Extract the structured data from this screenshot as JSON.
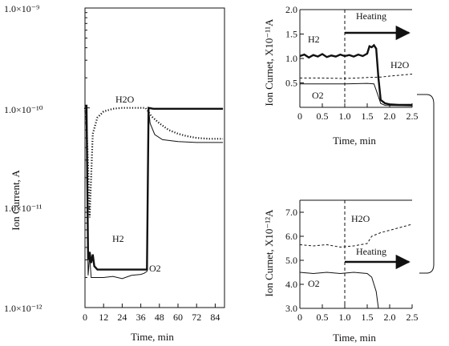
{
  "chart_data": [
    {
      "id": "main",
      "type": "line",
      "ylabel": "Ion Current, A",
      "xlabel": "Time, min",
      "y_scale": "log",
      "ylim": [
        1e-12,
        1e-09
      ],
      "xlim": [
        0,
        90
      ],
      "y_tick_labels": [
        "1.0×10⁻¹²",
        "1.0×10⁻¹¹",
        "1.0×10⁻¹⁰",
        "1.0×10⁻⁹"
      ],
      "y_tick_values": [
        1e-12,
        1e-11,
        1e-10,
        1e-09
      ],
      "x_ticks": [
        0,
        12,
        24,
        36,
        48,
        60,
        72,
        84
      ],
      "x_tick_labels": [
        "0",
        "12",
        "24",
        "36",
        "48",
        "60",
        "72",
        "84"
      ],
      "series": [
        {
          "name": "H2O",
          "style": "dotted",
          "color": "#111111",
          "points": [
            [
              0,
              1e-10
            ],
            [
              1,
              7e-11
            ],
            [
              2,
              2.6e-11
            ],
            [
              3,
              8e-12
            ],
            [
              5,
              5.5e-11
            ],
            [
              8,
              8e-11
            ],
            [
              12,
              9.2e-11
            ],
            [
              18,
              9.8e-11
            ],
            [
              24,
              1e-10
            ],
            [
              30,
              1e-10
            ],
            [
              36,
              1e-10
            ],
            [
              39,
              1e-10
            ],
            [
              40,
              9.6e-11
            ],
            [
              43,
              8.2e-11
            ],
            [
              48,
              7e-11
            ],
            [
              54,
              6e-11
            ],
            [
              60,
              5.5e-11
            ],
            [
              66,
              5.2e-11
            ],
            [
              72,
              5e-11
            ],
            [
              80,
              4.9e-11
            ],
            [
              89,
              4.9e-11
            ]
          ]
        },
        {
          "name": "H2",
          "style": "solid-thick",
          "color": "#111111",
          "points": [
            [
              0,
              1.05e-10
            ],
            [
              1,
              1.05e-10
            ],
            [
              2,
              3e-12
            ],
            [
              3,
              3.6e-12
            ],
            [
              4,
              2.8e-12
            ],
            [
              5,
              3.4e-12
            ],
            [
              6,
              2.6e-12
            ],
            [
              8,
              2.4e-12
            ],
            [
              12,
              2.4e-12
            ],
            [
              24,
              2.4e-12
            ],
            [
              36,
              2.4e-12
            ],
            [
              38,
              2.4e-12
            ],
            [
              40,
              2.4e-12
            ],
            [
              41,
              1e-10
            ],
            [
              44,
              9.8e-11
            ],
            [
              60,
              9.8e-11
            ],
            [
              72,
              9.8e-11
            ],
            [
              89,
              9.8e-11
            ]
          ]
        },
        {
          "name": "O2",
          "style": "solid-thin",
          "color": "#111111",
          "points": [
            [
              0,
              1e-10
            ],
            [
              1,
              1e-10
            ],
            [
              2,
              2.1e-12
            ],
            [
              3,
              3.3e-12
            ],
            [
              4,
              2e-12
            ],
            [
              6,
              2e-12
            ],
            [
              12,
              2e-12
            ],
            [
              18,
              2.05e-12
            ],
            [
              24,
              1.95e-12
            ],
            [
              30,
              2.1e-12
            ],
            [
              36,
              2.15e-12
            ],
            [
              38,
              2.2e-12
            ],
            [
              40,
              2.3e-12
            ],
            [
              41,
              1e-10
            ],
            [
              42,
              7e-11
            ],
            [
              45,
              5.4e-11
            ],
            [
              50,
              4.8e-11
            ],
            [
              60,
              4.6e-11
            ],
            [
              72,
              4.5e-11
            ],
            [
              89,
              4.5e-11
            ]
          ]
        }
      ],
      "annotations": [
        "H2O",
        "H2",
        "O2"
      ]
    },
    {
      "id": "inset-top",
      "type": "line",
      "ylabel": "Ion Curnet, X10⁻¹¹A",
      "xlabel": "Time, min",
      "xlim": [
        0,
        2.5
      ],
      "ylim": [
        0,
        2.0
      ],
      "x_ticks": [
        0,
        0.5,
        1.0,
        1.5,
        2.0,
        2.5
      ],
      "x_tick_labels": [
        "0",
        "0.5",
        "1.0",
        "1.5",
        "2.0",
        "2.5"
      ],
      "y_ticks": [
        0.5,
        1.0,
        1.5,
        2.0
      ],
      "y_tick_labels": [
        "0.5",
        "1.0",
        "1.5",
        "2.0"
      ],
      "heating_start": 1.0,
      "heating_label": "Heating",
      "series": [
        {
          "name": "H2",
          "style": "solid-thick",
          "color": "#111111",
          "points": [
            [
              0,
              1.05
            ],
            [
              0.1,
              1.08
            ],
            [
              0.2,
              1.02
            ],
            [
              0.3,
              1.07
            ],
            [
              0.4,
              1.04
            ],
            [
              0.5,
              1.09
            ],
            [
              0.6,
              1.03
            ],
            [
              0.7,
              1.06
            ],
            [
              0.8,
              1.04
            ],
            [
              0.9,
              1.08
            ],
            [
              1.0,
              1.05
            ],
            [
              1.1,
              1.07
            ],
            [
              1.2,
              1.04
            ],
            [
              1.3,
              1.08
            ],
            [
              1.4,
              1.05
            ],
            [
              1.5,
              1.1
            ],
            [
              1.55,
              1.25
            ],
            [
              1.6,
              1.23
            ],
            [
              1.65,
              1.27
            ],
            [
              1.7,
              1.2
            ],
            [
              1.75,
              0.6
            ],
            [
              1.8,
              0.15
            ],
            [
              1.9,
              0.08
            ],
            [
              2.0,
              0.06
            ],
            [
              2.2,
              0.05
            ],
            [
              2.5,
              0.05
            ]
          ]
        },
        {
          "name": "H2O",
          "style": "dashed",
          "color": "#111111",
          "points": [
            [
              0,
              0.6
            ],
            [
              0.5,
              0.6
            ],
            [
              1.0,
              0.59
            ],
            [
              1.5,
              0.61
            ],
            [
              1.8,
              0.62
            ],
            [
              2.0,
              0.64
            ],
            [
              2.5,
              0.68
            ]
          ]
        },
        {
          "name": "O2",
          "style": "solid-thin",
          "color": "#111111",
          "points": [
            [
              0,
              0.48
            ],
            [
              0.5,
              0.48
            ],
            [
              1.0,
              0.48
            ],
            [
              1.5,
              0.49
            ],
            [
              1.65,
              0.48
            ],
            [
              1.72,
              0.3
            ],
            [
              1.8,
              0.08
            ],
            [
              1.9,
              0.04
            ],
            [
              2.5,
              0.03
            ]
          ]
        }
      ],
      "annotations": [
        "H2",
        "H2O",
        "O2"
      ]
    },
    {
      "id": "inset-bottom",
      "type": "line",
      "ylabel": "Ion Curnet, X10⁻¹²A",
      "xlabel": "Time, min",
      "xlim": [
        0,
        2.5
      ],
      "ylim": [
        3.0,
        7.5
      ],
      "x_ticks": [
        0,
        0.5,
        1.0,
        1.5,
        2.0,
        2.5
      ],
      "x_tick_labels": [
        "0",
        "0.5",
        "1.0",
        "1.5",
        "2.0",
        "2.5"
      ],
      "y_ticks": [
        3.0,
        4.0,
        5.0,
        6.0,
        7.0
      ],
      "y_tick_labels": [
        "3.0",
        "4.0",
        "5.0",
        "6.0",
        "7.0"
      ],
      "heating_start": 1.0,
      "heating_label": "Heating",
      "series": [
        {
          "name": "H2O",
          "style": "dashed",
          "color": "#111111",
          "points": [
            [
              0,
              5.65
            ],
            [
              0.3,
              5.6
            ],
            [
              0.6,
              5.65
            ],
            [
              0.9,
              5.55
            ],
            [
              1.2,
              5.6
            ],
            [
              1.5,
              5.7
            ],
            [
              1.6,
              6.0
            ],
            [
              1.8,
              6.15
            ],
            [
              2.1,
              6.3
            ],
            [
              2.5,
              6.5
            ]
          ]
        },
        {
          "name": "O2",
          "style": "solid-thin",
          "color": "#111111",
          "points": [
            [
              0,
              4.5
            ],
            [
              0.3,
              4.45
            ],
            [
              0.6,
              4.5
            ],
            [
              0.9,
              4.45
            ],
            [
              1.2,
              4.5
            ],
            [
              1.5,
              4.45
            ],
            [
              1.6,
              4.3
            ],
            [
              1.7,
              3.7
            ],
            [
              1.75,
              3.0
            ]
          ]
        }
      ],
      "annotations": [
        "H2O",
        "O2"
      ]
    }
  ]
}
